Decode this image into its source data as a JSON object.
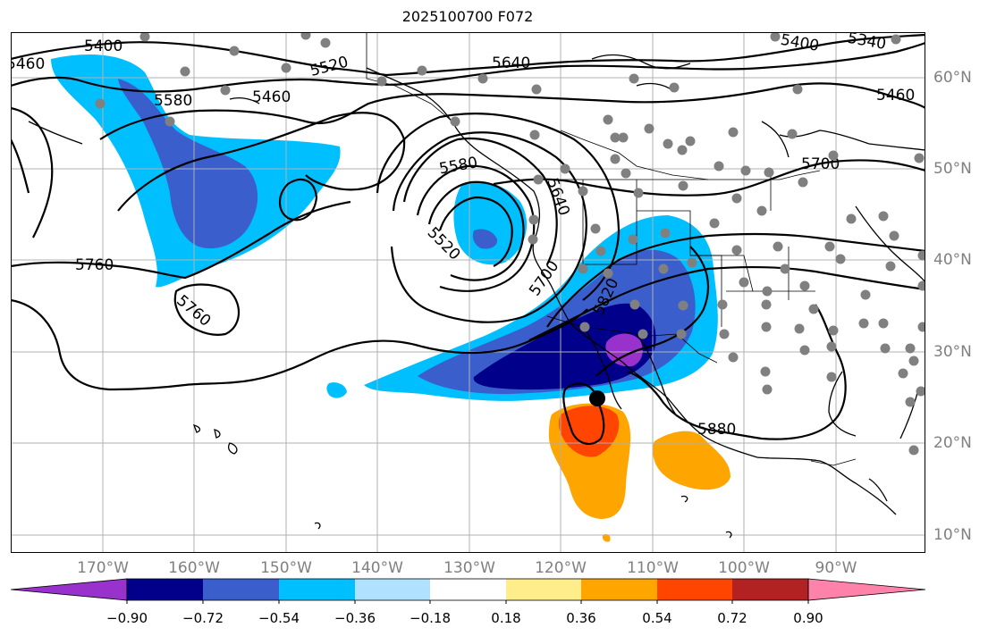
{
  "title": "2025100700 F072",
  "map": {
    "lon_labels": [
      "170°W",
      "160°W",
      "150°W",
      "140°W",
      "130°W",
      "120°W",
      "110°W",
      "100°W",
      "90°W"
    ],
    "lat_labels": [
      "60°N",
      "50°N",
      "40°N",
      "30°N",
      "20°N",
      "10°N"
    ],
    "contour_labels": [
      "5400",
      "5460",
      "5520",
      "5580",
      "5640",
      "5400",
      "5340",
      "5460",
      "5460",
      "5580",
      "5640",
      "5520",
      "5700",
      "5760",
      "5760",
      "5700",
      "5820",
      "5880"
    ],
    "colors": {
      "contour": "#000000",
      "grid": "#b0b0b0",
      "coast": "#000000",
      "station_dot": "#808080",
      "center_dot": "#000000"
    }
  },
  "colorbar": {
    "tick_labels": [
      "−0.90",
      "−0.72",
      "−0.54",
      "−0.36",
      "−0.18",
      "0.18",
      "0.36",
      "0.54",
      "0.72",
      "0.90"
    ],
    "colors": [
      "#9932cc",
      "#00008b",
      "#3a5fcd",
      "#00bfff",
      "#b0e2ff",
      "#ffffff",
      "#ffec8b",
      "#ffa500",
      "#ff4500",
      "#b22222",
      "#ff82ab"
    ]
  }
}
